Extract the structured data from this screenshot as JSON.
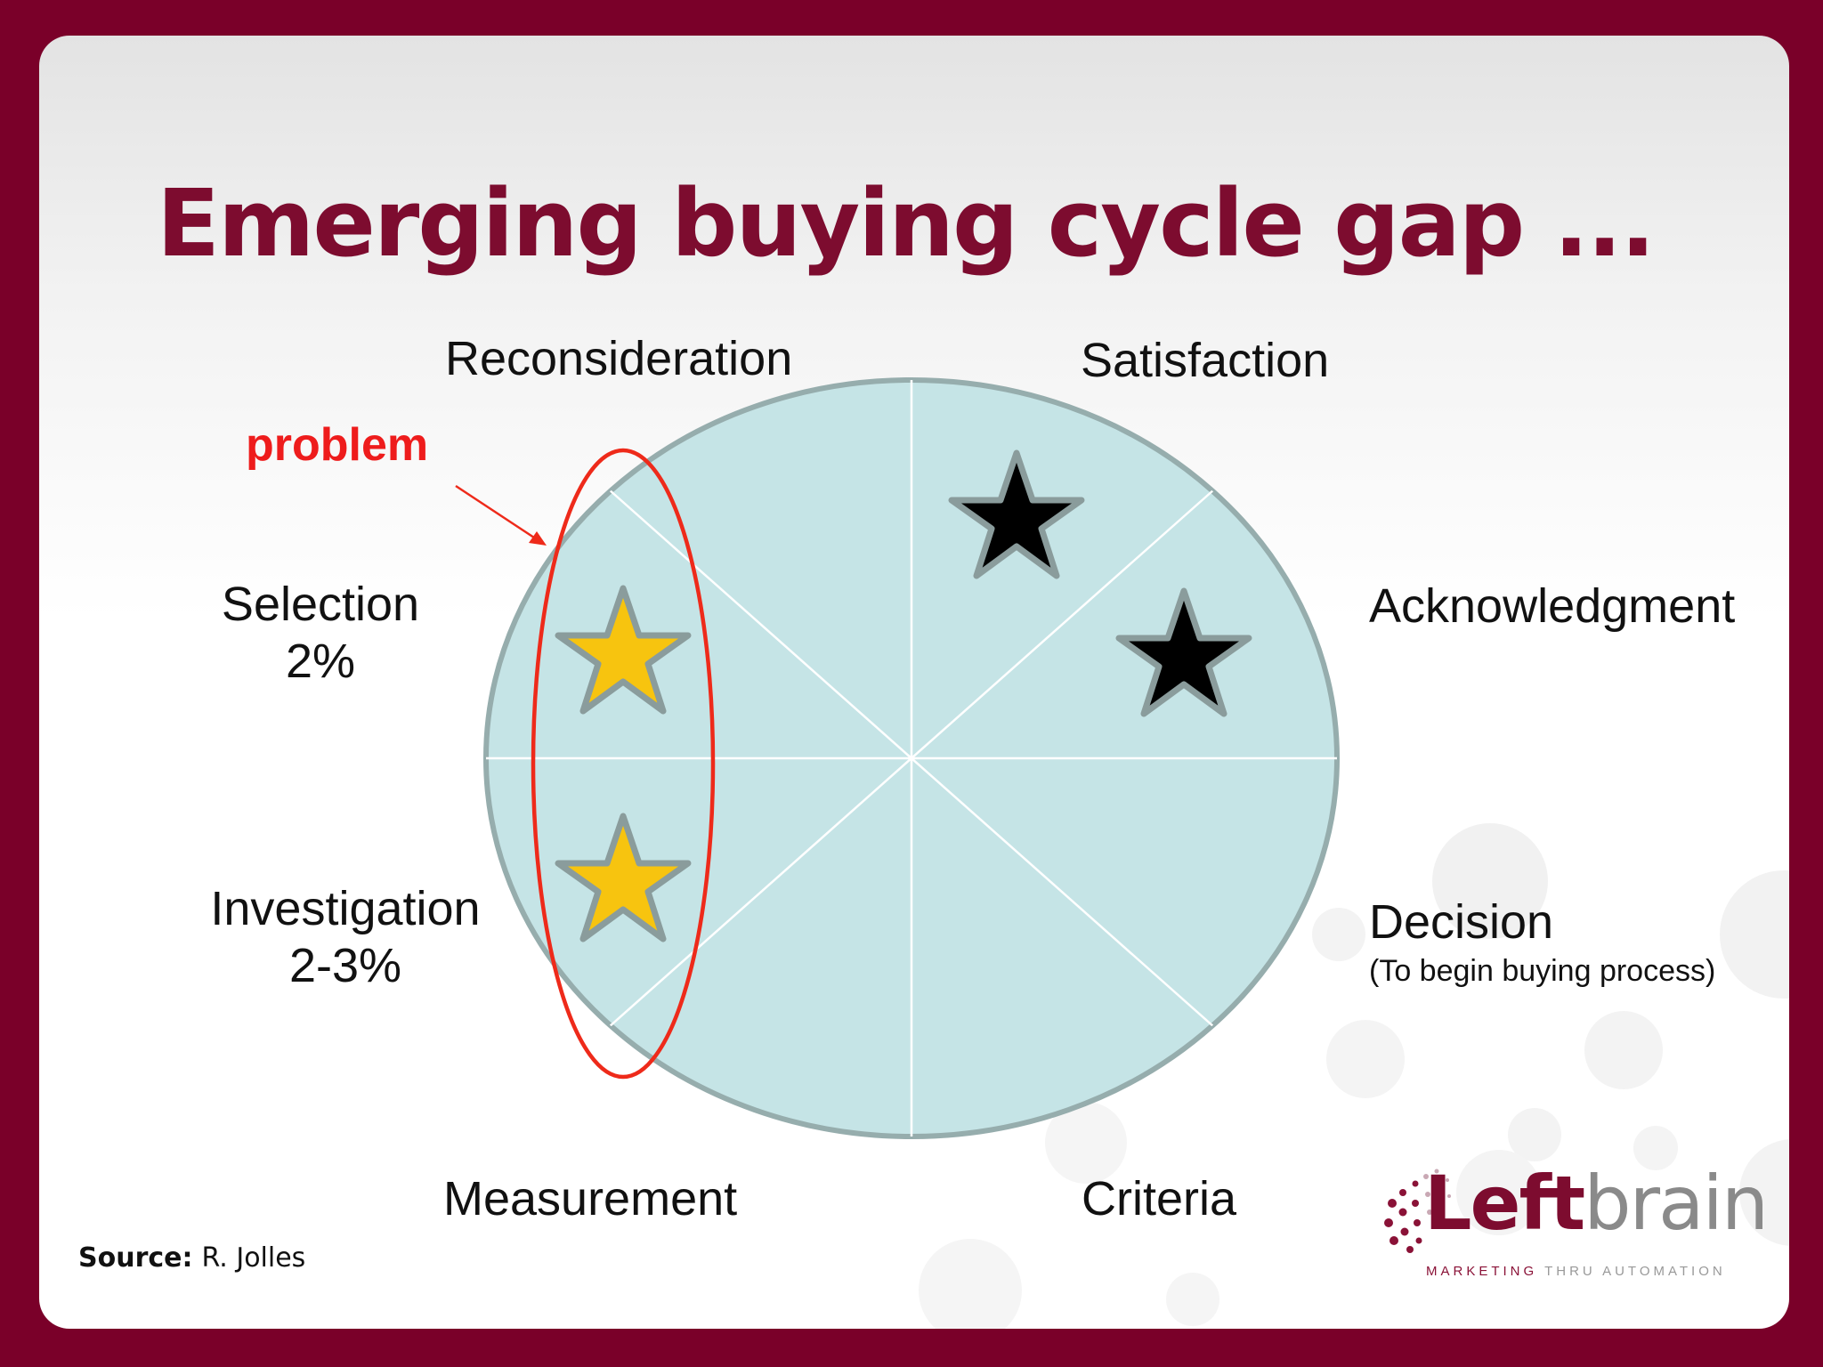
{
  "title": "Emerging buying cycle gap ...",
  "segments": {
    "reconsideration": "Reconsideration",
    "satisfaction": "Satisfaction",
    "acknowledgment": "Acknowledgment",
    "decision": "Decision",
    "decision_note": "(To begin buying process)",
    "criteria": "Criteria",
    "measurement": "Measurement",
    "investigation": "Investigation",
    "investigation_pct": "2-3%",
    "selection": "Selection",
    "selection_pct": "2%"
  },
  "callout": {
    "label": "problem",
    "color": "#ee1c1c"
  },
  "source": {
    "label": "Source:",
    "value": "R. Jolles"
  },
  "logo": {
    "word_bold": "Left",
    "word_light": "brain",
    "tag_a": "MARKETING",
    "tag_b": "THRU AUTOMATION"
  },
  "colors": {
    "frame": "#7a0029",
    "title": "#7d0c2f",
    "circle_fill": "#c5e4e6",
    "circle_stroke": "#96adad",
    "star_gold": "#f7c40f",
    "star_black": "#000000"
  },
  "icons": [
    "gold-star-icon",
    "black-star-icon",
    "dots-logo-icon"
  ]
}
